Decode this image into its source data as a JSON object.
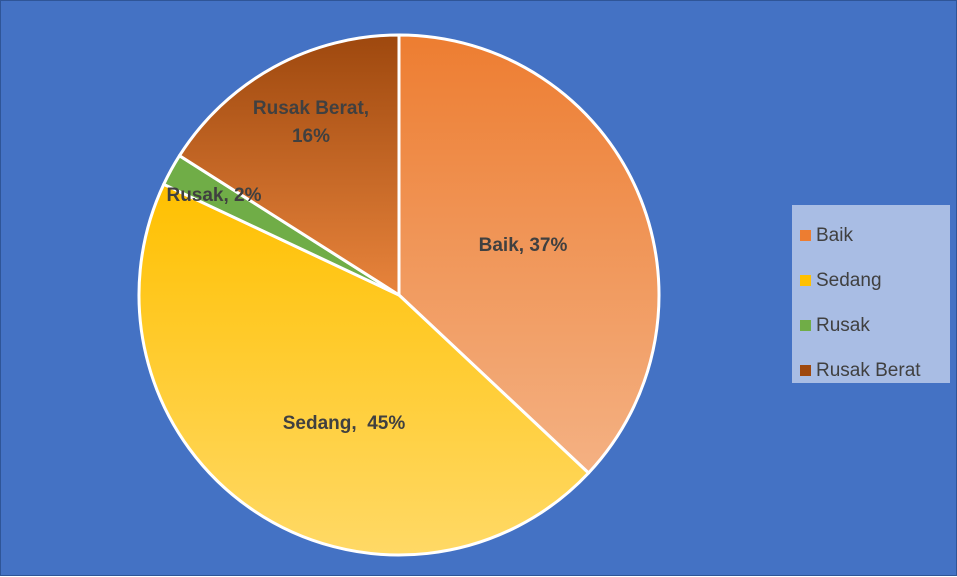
{
  "chart_data": {
    "type": "pie",
    "categories": [
      "Baik",
      "Sedang",
      "Rusak",
      "Rusak Berat"
    ],
    "values": [
      37,
      45,
      2,
      16
    ],
    "value_unit": "%",
    "data_labels": [
      [
        "Baik, 37%"
      ],
      [
        "Sedang,  45%"
      ],
      [
        "Rusak, 2%"
      ],
      [
        "Rusak Berat,",
        "16%"
      ]
    ],
    "legend_position": "right",
    "colors": {
      "background": "#4472c4",
      "legend_background": "#a9bde4",
      "label_text": "#404040",
      "slice_border": "#ffffff"
    },
    "slices": [
      {
        "name": "Baik",
        "value": 37,
        "color_light": "#f4b183",
        "color_dark": "#ed7d31",
        "swatch": "#ed7d31"
      },
      {
        "name": "Sedang",
        "value": 45,
        "color_light": "#ffd966",
        "color_dark": "#ffc000",
        "swatch": "#ffc000"
      },
      {
        "name": "Rusak",
        "value": 2,
        "color_light": "#70ad47",
        "color_dark": "#70ad47",
        "swatch": "#70ad47"
      },
      {
        "name": "Rusak Berat",
        "value": 16,
        "color_light": "#e8843c",
        "color_dark": "#9e480e",
        "swatch": "#9e480e"
      }
    ]
  }
}
